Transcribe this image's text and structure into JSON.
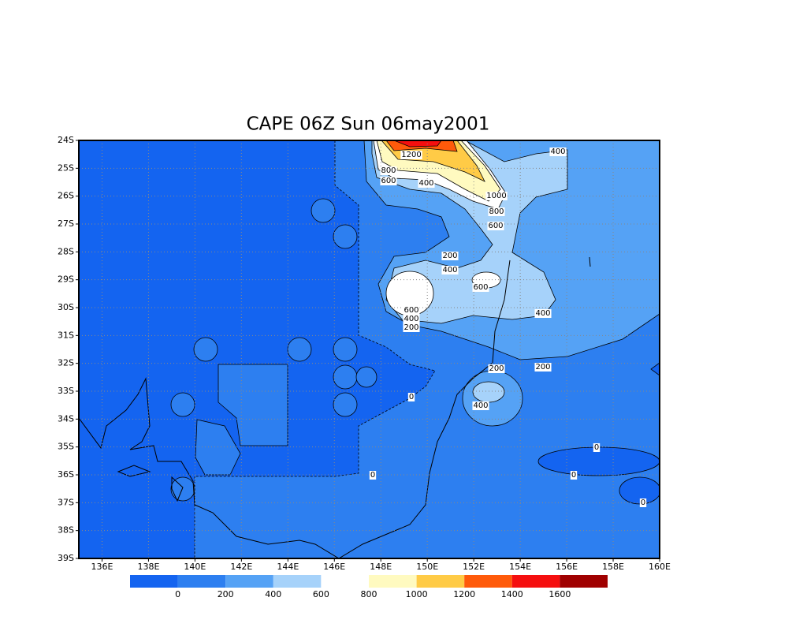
{
  "chart_data": {
    "type": "contour",
    "title": "CAPE 06Z Sun 06may2001",
    "xlim": [
      135,
      160
    ],
    "ylim": [
      -39,
      -24
    ],
    "xticks": [
      {
        "value": 136,
        "label": "136E"
      },
      {
        "value": 138,
        "label": "138E"
      },
      {
        "value": 140,
        "label": "140E"
      },
      {
        "value": 142,
        "label": "142E"
      },
      {
        "value": 144,
        "label": "144E"
      },
      {
        "value": 146,
        "label": "146E"
      },
      {
        "value": 148,
        "label": "148E"
      },
      {
        "value": 150,
        "label": "150E"
      },
      {
        "value": 152,
        "label": "152E"
      },
      {
        "value": 154,
        "label": "154E"
      },
      {
        "value": 156,
        "label": "156E"
      },
      {
        "value": 158,
        "label": "158E"
      },
      {
        "value": 160,
        "label": "160E"
      }
    ],
    "yticks": [
      {
        "value": -24,
        "label": "24S"
      },
      {
        "value": -25,
        "label": "25S"
      },
      {
        "value": -26,
        "label": "26S"
      },
      {
        "value": -27,
        "label": "27S"
      },
      {
        "value": -28,
        "label": "28S"
      },
      {
        "value": -29,
        "label": "29S"
      },
      {
        "value": -30,
        "label": "30S"
      },
      {
        "value": -31,
        "label": "31S"
      },
      {
        "value": -32,
        "label": "32S"
      },
      {
        "value": -33,
        "label": "33S"
      },
      {
        "value": -34,
        "label": "34S"
      },
      {
        "value": -35,
        "label": "35S"
      },
      {
        "value": -36,
        "label": "36S"
      },
      {
        "value": -37,
        "label": "37S"
      },
      {
        "value": -38,
        "label": "38S"
      },
      {
        "value": -39,
        "label": "39S"
      }
    ],
    "grid": true,
    "colorbar": {
      "colors": [
        "#1464f0",
        "#2d7ff0",
        "#55a2f5",
        "#a6d2fa",
        "#ffffff",
        "#fffac0",
        "#ffcb46",
        "#ff5a0a",
        "#f50f0f",
        "#a00000"
      ],
      "labels": [
        0,
        200,
        400,
        600,
        800,
        1000,
        1200,
        1400,
        1600
      ]
    },
    "contour_labels": [
      400,
      1200,
      800,
      600,
      400,
      1000,
      800,
      600,
      200,
      400,
      600,
      600,
      400,
      200,
      400,
      200,
      200,
      0,
      400,
      0,
      0,
      0,
      0
    ]
  }
}
